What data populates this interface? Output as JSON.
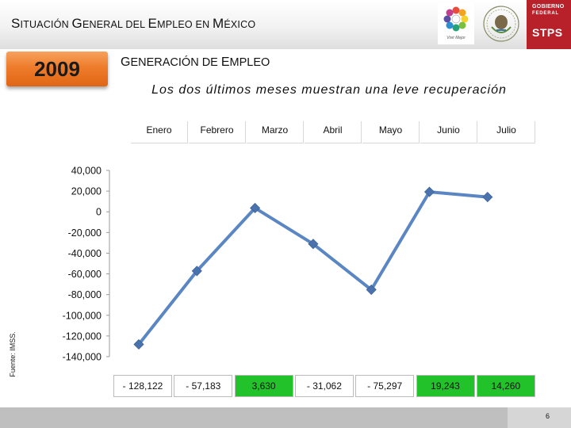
{
  "header": {
    "title_parts": [
      "S",
      "ITUACIÓN ",
      "G",
      "ENERAL DEL ",
      "E",
      "MPLEO EN ",
      "M",
      "ÉXICO"
    ],
    "logo_caption": "Vivir Mejor",
    "gov_line1": "GOBIERNO",
    "gov_line2": "FEDERAL",
    "gov_line3": "STPS"
  },
  "year_badge": "2009",
  "section_title_parts": [
    "G",
    "ENERACIÓN DE ",
    "E",
    "MPLEO"
  ],
  "subtitle": "Los dos últimos meses muestran una leve recuperación",
  "source_note": "Fuente: IMSS.",
  "page_number": "6",
  "colors": {
    "line": "#5b86c4",
    "marker": "#4a72ad",
    "positive_cell": "#22c32a",
    "negative_cell": "#ffffff",
    "year_badge": "#ee7c2b",
    "gov_red": "#b8202a"
  },
  "chart_data": {
    "type": "line",
    "categories": [
      "Enero",
      "Febrero",
      "Marzo",
      "Abril",
      "Mayo",
      "Junio",
      "Julio"
    ],
    "values": [
      -128122,
      -57183,
      3630,
      -31062,
      -75297,
      19243,
      14260
    ],
    "value_labels": [
      "- 128,122",
      "- 57,183",
      "3,630",
      "- 31,062",
      "- 75,297",
      "19,243",
      "14,260"
    ],
    "ylim": [
      -140000,
      40000
    ],
    "yticks": [
      40000,
      20000,
      0,
      -20000,
      -40000,
      -60000,
      -80000,
      -100000,
      -120000,
      -140000
    ],
    "ytick_labels": [
      "40,000",
      "20,000",
      "0",
      "-20,000",
      "-40,000",
      "-60,000",
      "-80,000",
      "-100,000",
      "-120,000",
      "-140,000"
    ],
    "grid": false,
    "title": "",
    "xlabel": "",
    "ylabel": ""
  }
}
